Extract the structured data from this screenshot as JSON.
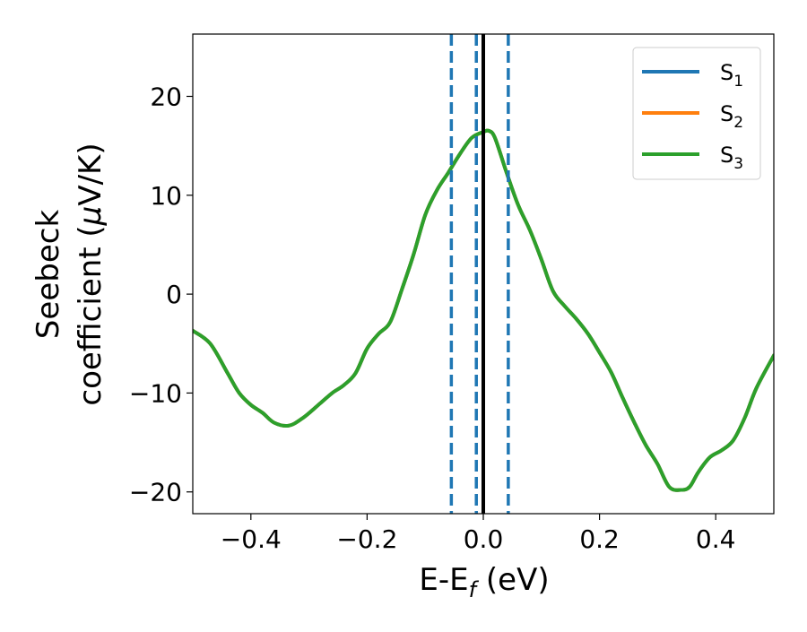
{
  "chart_data": {
    "type": "line",
    "xlabel_main": "E-E",
    "xlabel_sub": "f",
    "xlabel_tail": " (eV)",
    "ylabel_line1": "Seebeck",
    "ylabel_line2": "coefficient  (",
    "ylabel_mu": "μ",
    "ylabel_tail": "V/K)",
    "xlim": [
      -0.5,
      0.5
    ],
    "ylim": [
      -22.2,
      26.3
    ],
    "xticks": [
      -0.4,
      -0.2,
      0.0,
      0.2,
      0.4
    ],
    "xtick_labels": [
      "−0.4",
      "−0.2",
      "0.0",
      "0.2",
      "0.4"
    ],
    "yticks": [
      -20,
      -10,
      0,
      10,
      20
    ],
    "ytick_labels": [
      "−20",
      "−10",
      "0",
      "10",
      "20"
    ],
    "grid": false,
    "legend_position": "top-right",
    "x": [
      -0.5,
      -0.47,
      -0.44,
      -0.42,
      -0.4,
      -0.38,
      -0.36,
      -0.335,
      -0.31,
      -0.28,
      -0.26,
      -0.24,
      -0.22,
      -0.2,
      -0.18,
      -0.16,
      -0.14,
      -0.12,
      -0.1,
      -0.08,
      -0.06,
      -0.04,
      -0.02,
      0.0,
      0.01,
      0.02,
      0.04,
      0.06,
      0.08,
      0.1,
      0.12,
      0.14,
      0.16,
      0.18,
      0.2,
      0.22,
      0.24,
      0.26,
      0.28,
      0.3,
      0.32,
      0.34,
      0.355,
      0.37,
      0.39,
      0.41,
      0.43,
      0.45,
      0.47,
      0.5
    ],
    "series": [
      {
        "name": "S",
        "sub": "1",
        "color": "#1f77b4",
        "values": [
          -3.7,
          -5.0,
          -8.0,
          -10.0,
          -11.2,
          -12.0,
          -13.0,
          -13.3,
          -12.5,
          -11.0,
          -10.0,
          -9.2,
          -8.0,
          -5.5,
          -4.0,
          -2.8,
          0.5,
          4.0,
          8.0,
          10.5,
          12.3,
          14.2,
          15.8,
          16.4,
          16.5,
          15.8,
          12.3,
          9.0,
          6.5,
          3.5,
          0.3,
          -1.2,
          -2.5,
          -4.0,
          -5.9,
          -7.9,
          -10.5,
          -13.0,
          -15.3,
          -17.2,
          -19.5,
          -19.8,
          -19.5,
          -18.0,
          -16.5,
          -15.8,
          -14.8,
          -12.5,
          -9.5,
          -6.2
        ]
      },
      {
        "name": "S",
        "sub": "2",
        "color": "#ff7f0e",
        "values": [
          -3.7,
          -5.0,
          -8.0,
          -10.0,
          -11.2,
          -12.0,
          -13.0,
          -13.3,
          -12.5,
          -11.0,
          -10.0,
          -9.2,
          -8.0,
          -5.5,
          -4.0,
          -2.8,
          0.5,
          4.0,
          8.0,
          10.5,
          12.3,
          14.2,
          15.8,
          16.4,
          16.5,
          15.8,
          12.3,
          9.0,
          6.5,
          3.5,
          0.3,
          -1.2,
          -2.5,
          -4.0,
          -5.9,
          -7.9,
          -10.5,
          -13.0,
          -15.3,
          -17.2,
          -19.5,
          -19.8,
          -19.5,
          -18.0,
          -16.5,
          -15.8,
          -14.8,
          -12.5,
          -9.5,
          -6.2
        ]
      },
      {
        "name": "S",
        "sub": "3",
        "color": "#2ca02c",
        "values": [
          -3.7,
          -5.0,
          -8.0,
          -10.0,
          -11.2,
          -12.0,
          -13.0,
          -13.3,
          -12.5,
          -11.0,
          -10.0,
          -9.2,
          -8.0,
          -5.5,
          -4.0,
          -2.8,
          0.5,
          4.0,
          8.0,
          10.5,
          12.3,
          14.2,
          15.8,
          16.4,
          16.5,
          15.8,
          12.3,
          9.0,
          6.5,
          3.5,
          0.3,
          -1.2,
          -2.5,
          -4.0,
          -5.9,
          -7.9,
          -10.5,
          -13.0,
          -15.3,
          -17.2,
          -19.5,
          -19.8,
          -19.5,
          -18.0,
          -16.5,
          -15.8,
          -14.8,
          -12.5,
          -9.5,
          -6.2
        ]
      }
    ],
    "vlines": [
      {
        "x": -0.055,
        "style": "dashed",
        "color": "#1f77b4"
      },
      {
        "x": -0.012,
        "style": "dashed",
        "color": "#1f77b4"
      },
      {
        "x": 0.0,
        "style": "solid",
        "color": "#000000"
      },
      {
        "x": 0.043,
        "style": "dashed",
        "color": "#1f77b4"
      }
    ]
  }
}
